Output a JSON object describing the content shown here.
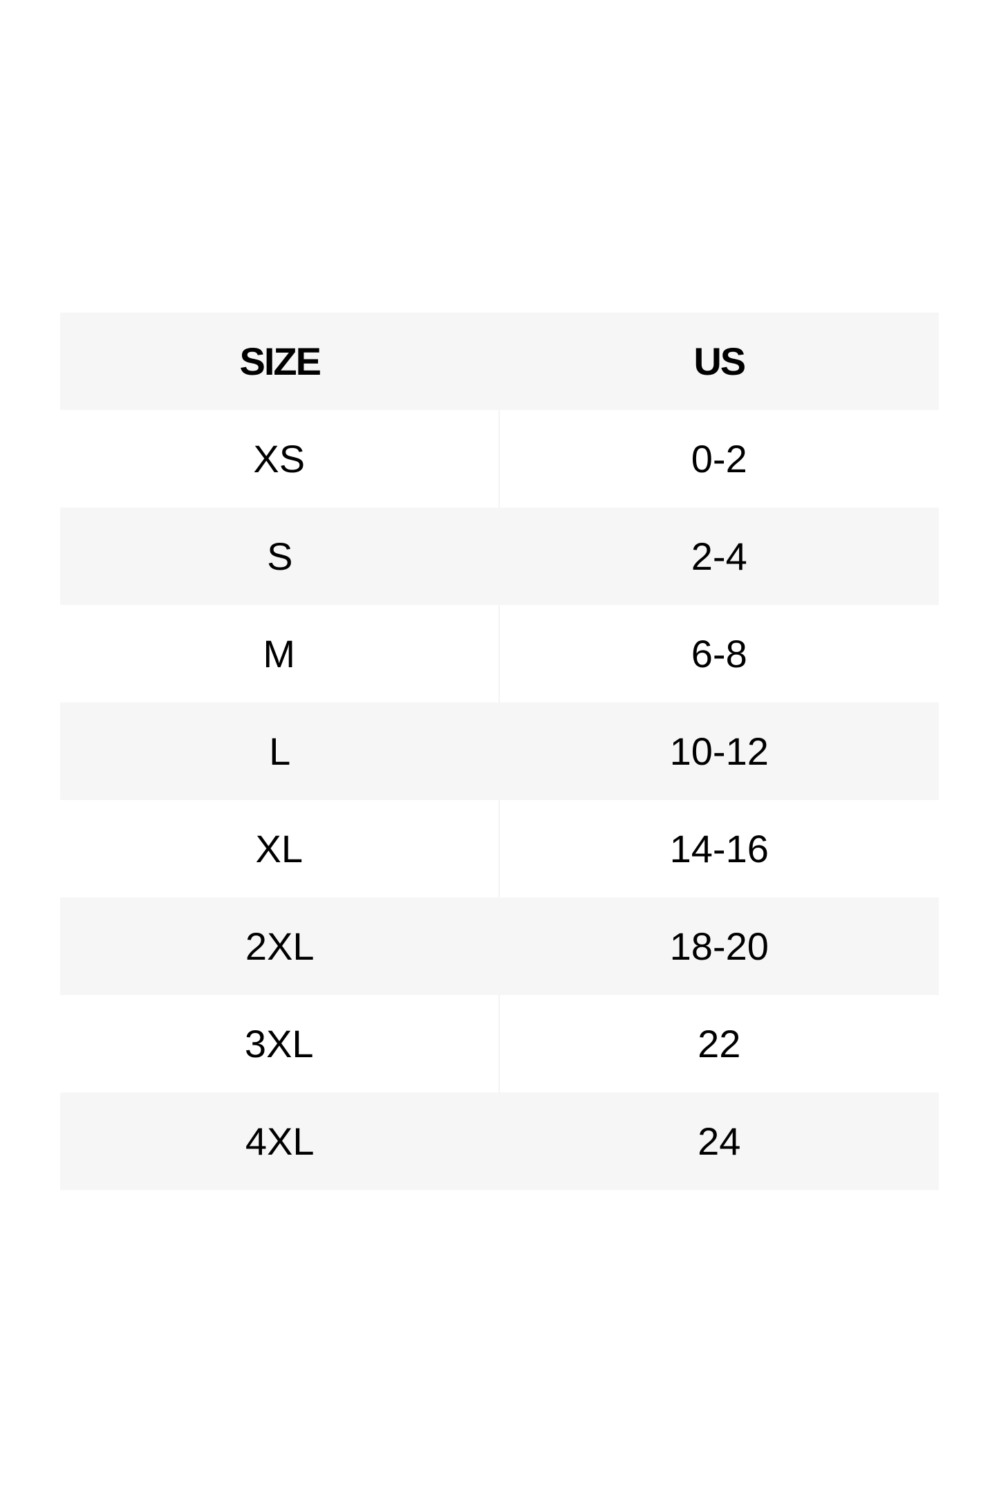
{
  "table": {
    "headers": [
      "SIZE",
      "US"
    ],
    "rows": [
      [
        "XS",
        "0-2"
      ],
      [
        "S",
        "2-4"
      ],
      [
        "M",
        "6-8"
      ],
      [
        "L",
        "10-12"
      ],
      [
        "XL",
        "14-16"
      ],
      [
        "2XL",
        "18-20"
      ],
      [
        "3XL",
        "22"
      ],
      [
        "4XL",
        "24"
      ]
    ]
  },
  "colors": {
    "header_bg": "#f6f6f6",
    "stripe_bg": "#f6f6f6",
    "text": "#000000"
  }
}
